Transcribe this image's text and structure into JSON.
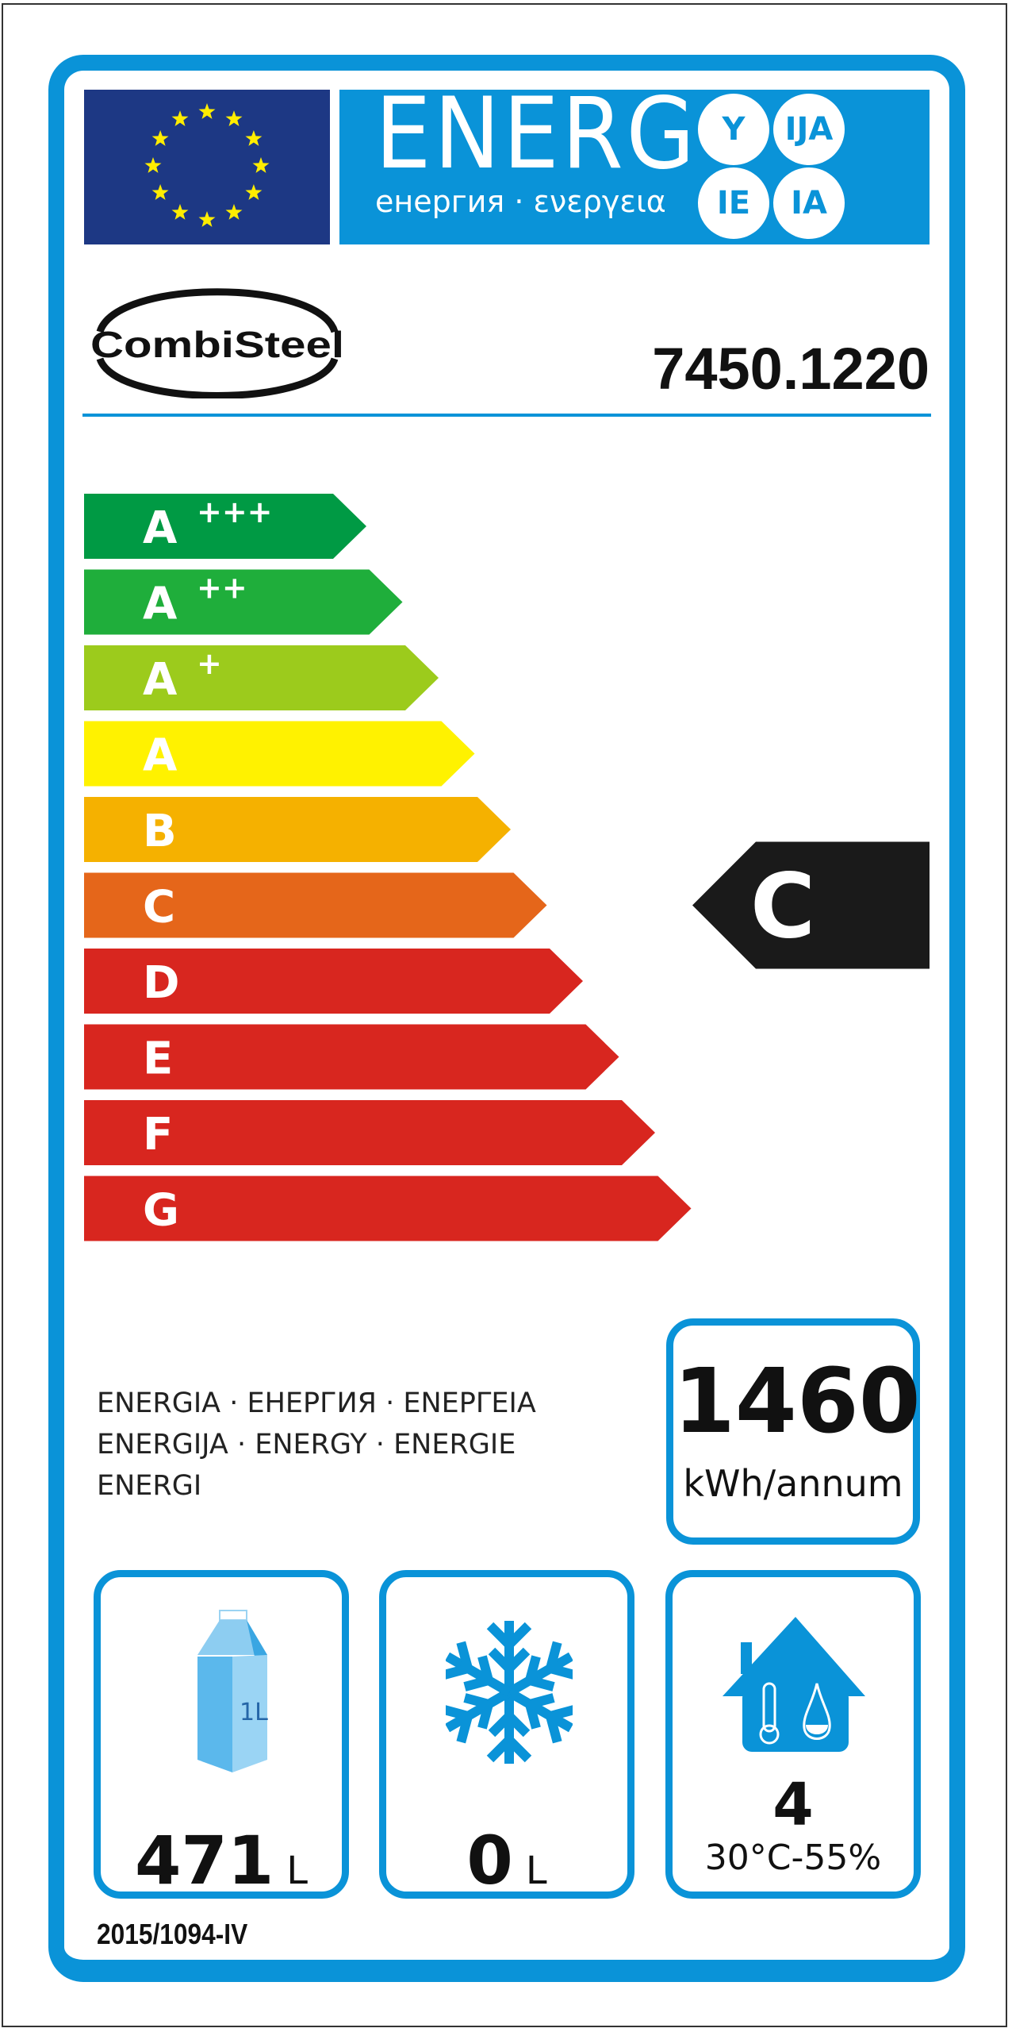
{
  "header": {
    "title": "ENERG",
    "subtitle": "енергия · ενεργεια",
    "suffixes": [
      "Y",
      "IJA",
      "IE",
      "IA"
    ]
  },
  "supplier": {
    "logo_text": "CombiSteel",
    "model": "7450.1220"
  },
  "scale": {
    "classes": [
      {
        "letter": "A",
        "plus": "+++",
        "color": "#009a44"
      },
      {
        "letter": "A",
        "plus": "++",
        "color": "#1fae3b"
      },
      {
        "letter": "A",
        "plus": "+",
        "color": "#9ccb1c"
      },
      {
        "letter": "A",
        "plus": "",
        "color": "#fff200"
      },
      {
        "letter": "B",
        "plus": "",
        "color": "#f5b100"
      },
      {
        "letter": "C",
        "plus": "",
        "color": "#e5661a"
      },
      {
        "letter": "D",
        "plus": "",
        "color": "#d8261f"
      },
      {
        "letter": "E",
        "plus": "",
        "color": "#d8261f"
      },
      {
        "letter": "F",
        "plus": "",
        "color": "#d8261f"
      },
      {
        "letter": "G",
        "plus": "",
        "color": "#d8261f"
      }
    ],
    "rating": "C",
    "rating_index": 5
  },
  "energy": {
    "words": [
      "ENERGIA · ЕНЕРГИЯ · ΕΝΕΡΓΕΙΑ",
      "ENERGIJA · ENERGY · ENERGIE",
      "ENERGI"
    ],
    "value": "1460",
    "unit": "kWh/annum"
  },
  "capacity": {
    "fresh_value": "471",
    "fresh_unit": "L",
    "carton_label": "1L",
    "frozen_value": "0",
    "frozen_unit": "L",
    "climate_class": "4",
    "climate_conditions": "30°C-55%"
  },
  "regulation": "2015/1094-IV",
  "colors": {
    "blue": "#0a93d8",
    "flag": "#1d3884",
    "star": "#ffed00",
    "arrow": "#1a1a1a"
  }
}
